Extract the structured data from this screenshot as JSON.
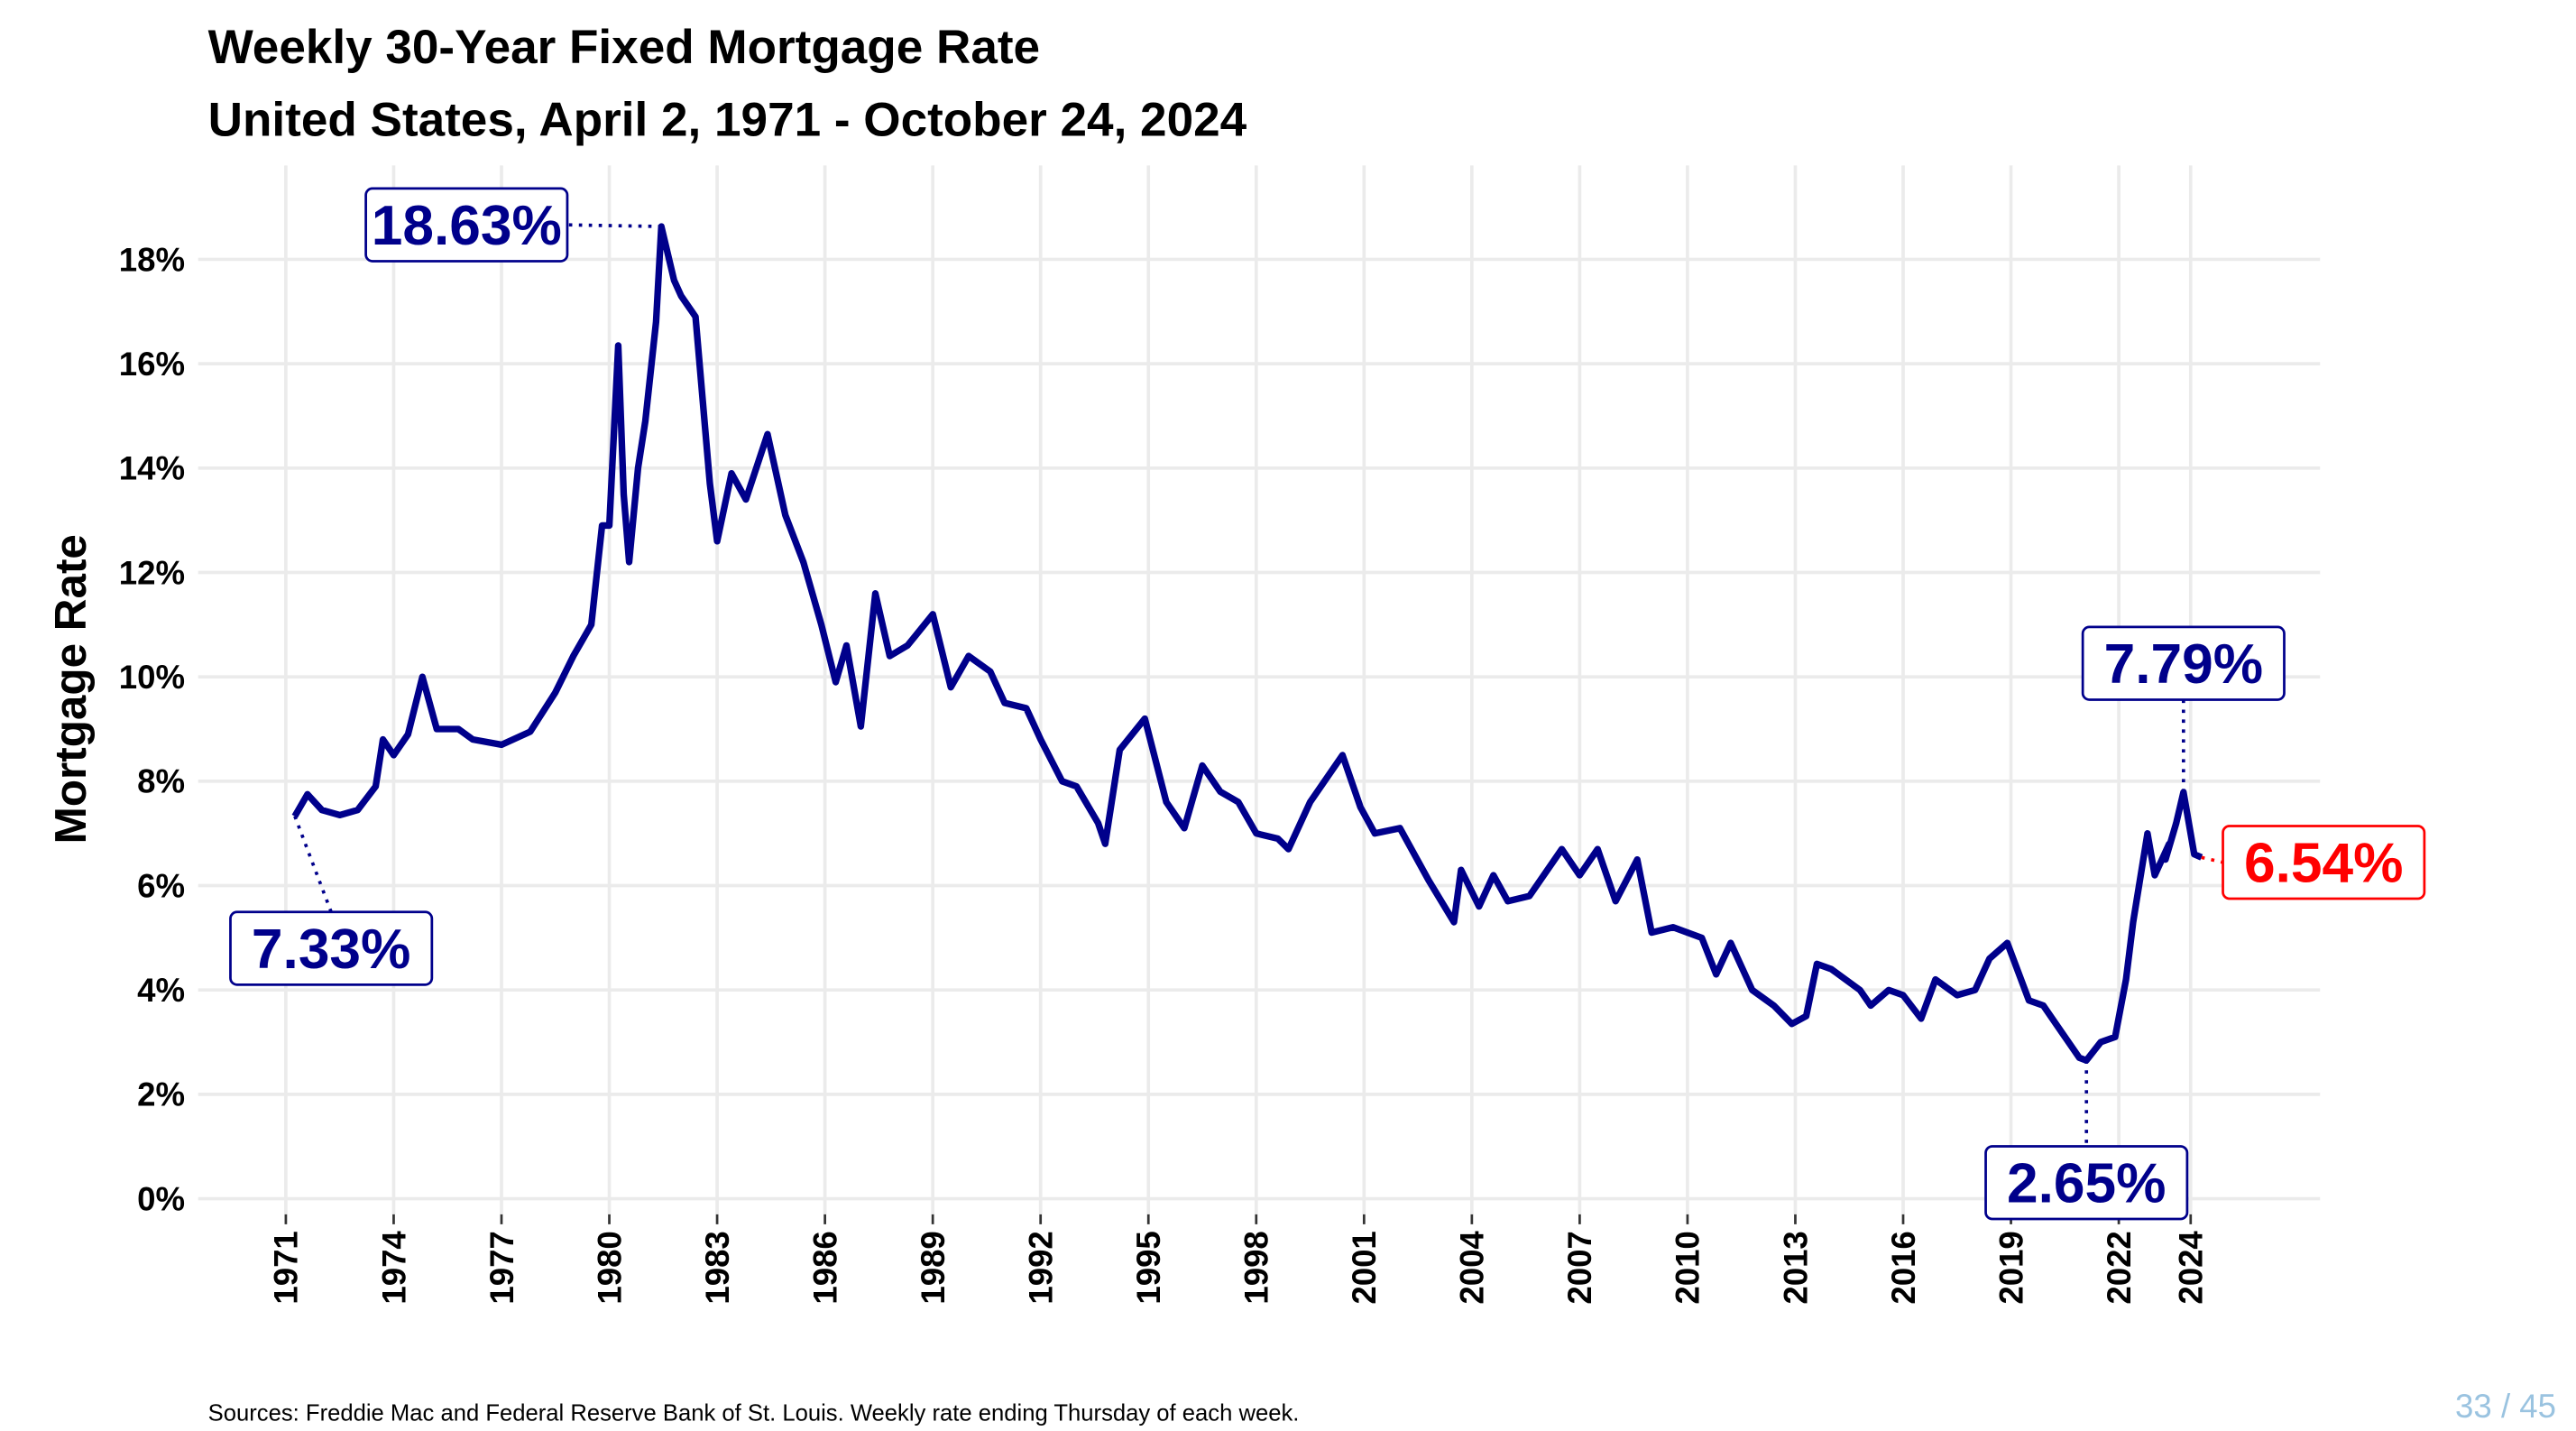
{
  "chart_data": {
    "type": "line",
    "title": "Weekly 30-Year Fixed Mortgage Rate",
    "subtitle": "United States, April 2, 1971 - October 24, 2024",
    "ylabel": "Mortgage Rate",
    "source": "Sources: Freddie Mac and Federal Reserve Bank of St. Louis. Weekly rate ending Thursday of each week.",
    "page_number": "33 / 45",
    "color": "#00008b",
    "grid": true,
    "xlim": [
      1968.56,
      2027.6
    ],
    "ylim": [
      -0.3,
      19.8
    ],
    "xticks": [
      1971,
      1974,
      1977,
      1980,
      1983,
      1986,
      1989,
      1992,
      1995,
      1998,
      2001,
      2004,
      2007,
      2010,
      2013,
      2016,
      2019,
      2022,
      2024
    ],
    "yticks": [
      {
        "value": 0,
        "label": "0%"
      },
      {
        "value": 2,
        "label": "2%"
      },
      {
        "value": 4,
        "label": "4%"
      },
      {
        "value": 6,
        "label": "6%"
      },
      {
        "value": 8,
        "label": "8%"
      },
      {
        "value": 10,
        "label": "10%"
      },
      {
        "value": 12,
        "label": "12%"
      },
      {
        "value": 14,
        "label": "14%"
      },
      {
        "value": 16,
        "label": "16%"
      },
      {
        "value": 18,
        "label": "18%"
      }
    ],
    "x": [
      1971.25,
      1971.6,
      1972.0,
      1972.5,
      1973.0,
      1973.5,
      1973.7,
      1974.0,
      1974.4,
      1974.8,
      1975.2,
      1975.8,
      1976.2,
      1977.0,
      1977.8,
      1978.5,
      1979.0,
      1979.5,
      1979.8,
      1980.0,
      1980.25,
      1980.4,
      1980.55,
      1980.8,
      1981.0,
      1981.3,
      1981.45,
      1981.8,
      1982.0,
      1982.4,
      1982.8,
      1983.0,
      1983.4,
      1983.8,
      1984.4,
      1984.9,
      1985.4,
      1985.9,
      1986.3,
      1986.6,
      1987.0,
      1987.4,
      1987.8,
      1988.3,
      1989.0,
      1989.5,
      1990.0,
      1990.6,
      1991.0,
      1991.6,
      1992.0,
      1992.6,
      1993.0,
      1993.6,
      1993.8,
      1994.2,
      1994.9,
      1995.5,
      1996.0,
      1996.5,
      1997.0,
      1997.5,
      1998.0,
      1998.6,
      1998.9,
      1999.5,
      2000.4,
      2000.9,
      2001.3,
      2002.0,
      2002.8,
      2003.5,
      2003.7,
      2004.2,
      2004.6,
      2005.0,
      2005.6,
      2006.5,
      2007.0,
      2007.5,
      2008.0,
      2008.6,
      2009.0,
      2009.6,
      2010.4,
      2010.8,
      2011.2,
      2011.8,
      2012.4,
      2012.9,
      2013.3,
      2013.6,
      2014.0,
      2014.8,
      2015.1,
      2015.6,
      2016.0,
      2016.5,
      2016.9,
      2017.5,
      2018.0,
      2018.4,
      2018.9,
      2019.5,
      2019.9,
      2020.4,
      2020.9,
      2021.1,
      2021.5,
      2021.9,
      2022.2,
      2022.4,
      2022.8,
      2023.0,
      2023.4,
      2023.3,
      2023.6,
      2023.8,
      2024.1,
      2024.3
    ],
    "values": [
      7.33,
      7.75,
      7.45,
      7.35,
      7.45,
      7.9,
      8.8,
      8.5,
      8.9,
      10.0,
      9.0,
      9.0,
      8.8,
      8.7,
      8.95,
      9.7,
      10.4,
      11.0,
      12.9,
      12.9,
      16.35,
      13.5,
      12.2,
      14.0,
      14.9,
      16.8,
      18.63,
      17.6,
      17.3,
      16.9,
      13.7,
      12.6,
      13.9,
      13.4,
      14.65,
      13.1,
      12.2,
      11.0,
      9.9,
      10.6,
      9.05,
      11.6,
      10.4,
      10.6,
      11.2,
      9.8,
      10.4,
      10.1,
      9.5,
      9.4,
      8.8,
      8.0,
      7.9,
      7.2,
      6.8,
      8.6,
      9.2,
      7.6,
      7.1,
      8.3,
      7.8,
      7.6,
      7.0,
      6.9,
      6.7,
      7.6,
      8.5,
      7.5,
      7.0,
      7.1,
      6.1,
      5.3,
      6.3,
      5.6,
      6.2,
      5.7,
      5.8,
      6.7,
      6.2,
      6.7,
      5.7,
      6.5,
      5.1,
      5.2,
      5.0,
      4.3,
      4.9,
      4.0,
      3.7,
      3.35,
      3.5,
      4.5,
      4.4,
      4.0,
      3.7,
      4.0,
      3.9,
      3.45,
      4.2,
      3.9,
      4.0,
      4.6,
      4.9,
      3.8,
      3.7,
      3.2,
      2.7,
      2.65,
      3.0,
      3.1,
      4.2,
      5.3,
      7.0,
      6.2,
      6.8,
      6.5,
      7.2,
      7.79,
      6.6,
      6.54
    ],
    "annotations": [
      {
        "x": 1981.45,
        "value": 18.63,
        "label": "18.63%",
        "color": "#00008b"
      },
      {
        "x": 1971.25,
        "value": 7.33,
        "label": "7.33%",
        "color": "#00008b"
      },
      {
        "x": 2023.8,
        "value": 7.79,
        "label": "7.79%",
        "color": "#00008b"
      },
      {
        "x": 2021.1,
        "value": 2.65,
        "label": "2.65%",
        "color": "#00008b"
      },
      {
        "x": 2024.3,
        "value": 6.54,
        "label": "6.54%",
        "color": "#ff0000"
      }
    ]
  }
}
